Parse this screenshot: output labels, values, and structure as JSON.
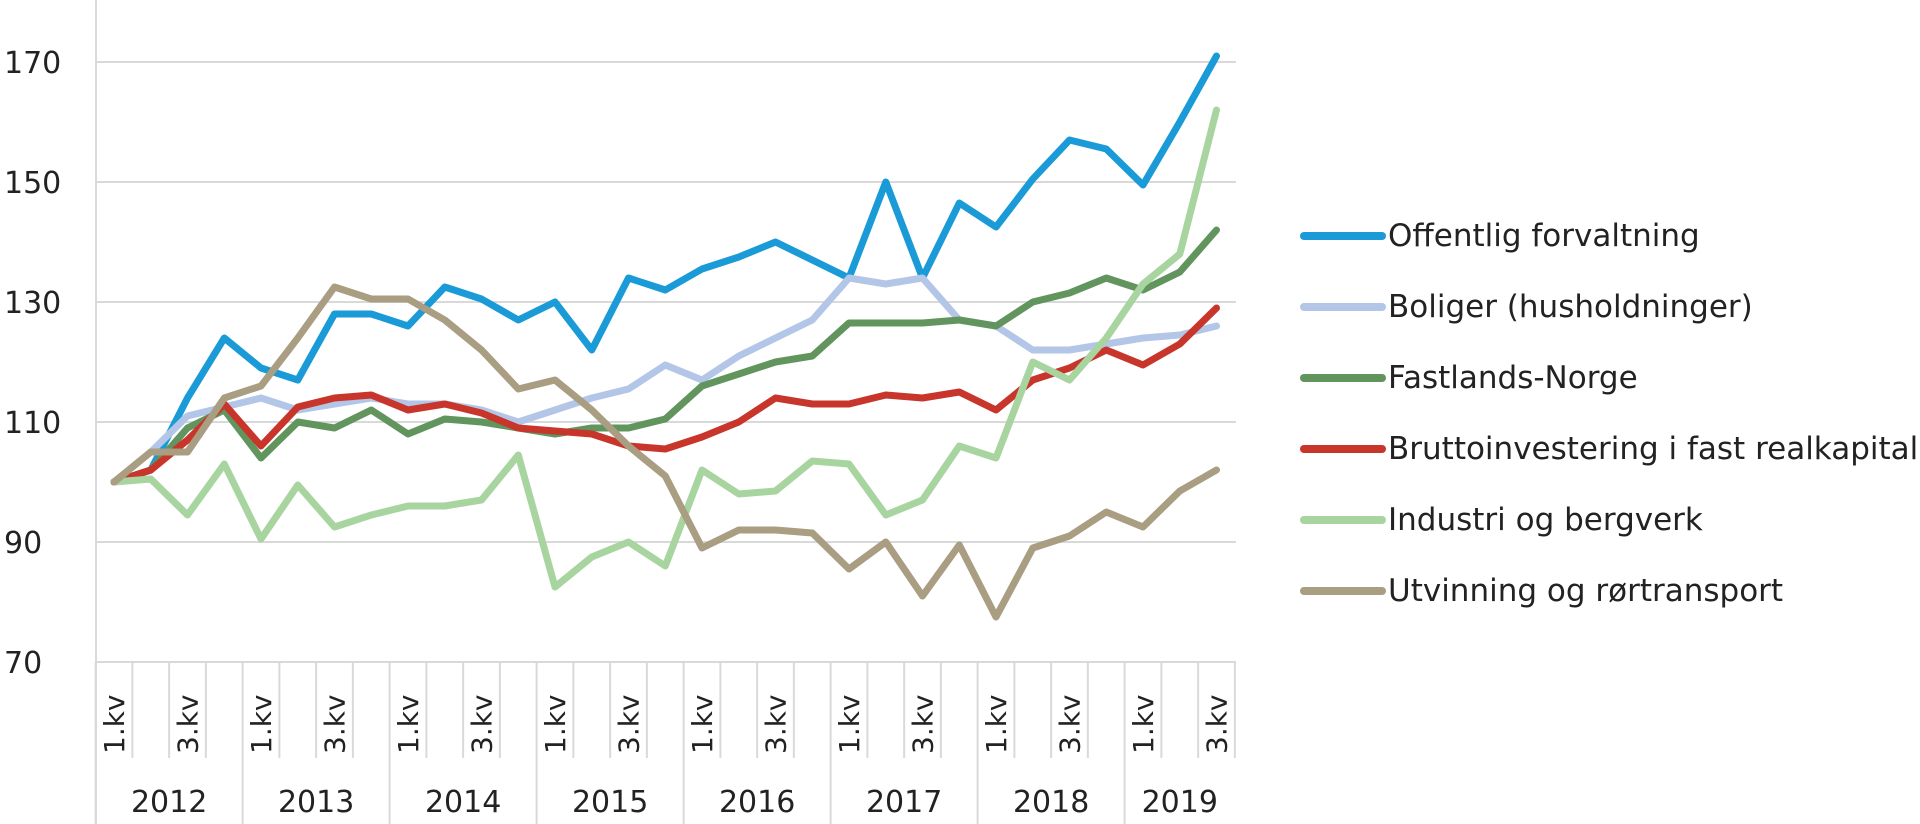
{
  "chart_data": {
    "type": "line",
    "title": "",
    "xlabel": "",
    "ylabel": "",
    "ylim": [
      70,
      180
    ],
    "yticks": [
      70,
      90,
      110,
      130,
      150,
      170
    ],
    "grid": true,
    "legend_position": "right",
    "x": [
      "2012 1.kv",
      "2012 2.kv",
      "2012 3.kv",
      "2012 4.kv",
      "2013 1.kv",
      "2013 2.kv",
      "2013 3.kv",
      "2013 4.kv",
      "2014 1.kv",
      "2014 2.kv",
      "2014 3.kv",
      "2014 4.kv",
      "2015 1.kv",
      "2015 2.kv",
      "2015 3.kv",
      "2015 4.kv",
      "2016 1.kv",
      "2016 2.kv",
      "2016 3.kv",
      "2016 4.kv",
      "2017 1.kv",
      "2017 2.kv",
      "2017 3.kv",
      "2017 4.kv",
      "2018 1.kv",
      "2018 2.kv",
      "2018 3.kv",
      "2018 4.kv",
      "2019 1.kv",
      "2019 2.kv",
      "2019 3.kv"
    ],
    "quarter_tick_labels": [
      "1.kv",
      "3.kv"
    ],
    "years": [
      "2012",
      "2013",
      "2014",
      "2015",
      "2016",
      "2017",
      "2018",
      "2019"
    ],
    "series": [
      {
        "name": "Offentlig forvaltning",
        "color": "#1a9ad6",
        "values": [
          100,
          102,
          114,
          124,
          119,
          117,
          128,
          128,
          126,
          132.5,
          130.5,
          127,
          130,
          122,
          134,
          132,
          135.5,
          137.5,
          140,
          137,
          134,
          150,
          134,
          146.5,
          142.5,
          150.5,
          157,
          155.5,
          149.5,
          160,
          171
        ]
      },
      {
        "name": "Boliger (husholdninger)",
        "color": "#b3c6e8",
        "values": [
          100,
          105,
          111,
          112.5,
          114,
          112,
          113,
          114,
          113,
          113,
          112,
          110,
          112,
          114,
          115.5,
          119.5,
          117,
          121,
          124,
          127,
          134,
          133,
          134,
          127,
          126,
          122,
          122,
          123,
          124,
          124.5,
          126
        ]
      },
      {
        "name": "Fastlands-Norge",
        "color": "#62945e",
        "values": [
          100,
          102,
          109,
          112,
          104,
          110,
          109,
          112,
          108,
          110.5,
          110,
          109,
          108,
          109,
          109,
          110.5,
          116,
          118,
          120,
          121,
          126.5,
          126.5,
          126.5,
          127,
          126,
          130,
          131.5,
          134,
          132,
          135,
          142
        ]
      },
      {
        "name": "Bruttoinvestering i fast realkapital",
        "color": "#c8352b",
        "values": [
          100,
          102,
          107,
          113,
          106,
          112.5,
          114,
          114.5,
          112,
          113,
          111.5,
          109,
          108.5,
          108,
          106,
          105.5,
          107.5,
          110,
          114,
          113,
          113,
          114.5,
          114,
          115,
          112,
          117,
          119,
          122,
          119.5,
          123,
          129
        ]
      },
      {
        "name": "Industri og bergverk",
        "color": "#a8d4a0",
        "values": [
          100,
          100.5,
          94.5,
          103,
          90.5,
          99.5,
          92.5,
          94.5,
          96,
          96,
          97,
          104.5,
          82.5,
          87.5,
          90,
          86,
          102,
          98,
          98.5,
          103.5,
          103,
          94.5,
          97,
          106,
          104,
          120,
          117,
          124,
          133,
          138,
          162
        ]
      },
      {
        "name": "Utvinning og rørtransport",
        "color": "#a99d82",
        "values": [
          100,
          105,
          105,
          114,
          116,
          124,
          132.5,
          130.5,
          130.5,
          127,
          122,
          115.5,
          117,
          112,
          106,
          101,
          89,
          92,
          92,
          91.5,
          85.5,
          90,
          81,
          89.5,
          77.5,
          89,
          91,
          95,
          92.5,
          98.5,
          102
        ]
      }
    ]
  }
}
